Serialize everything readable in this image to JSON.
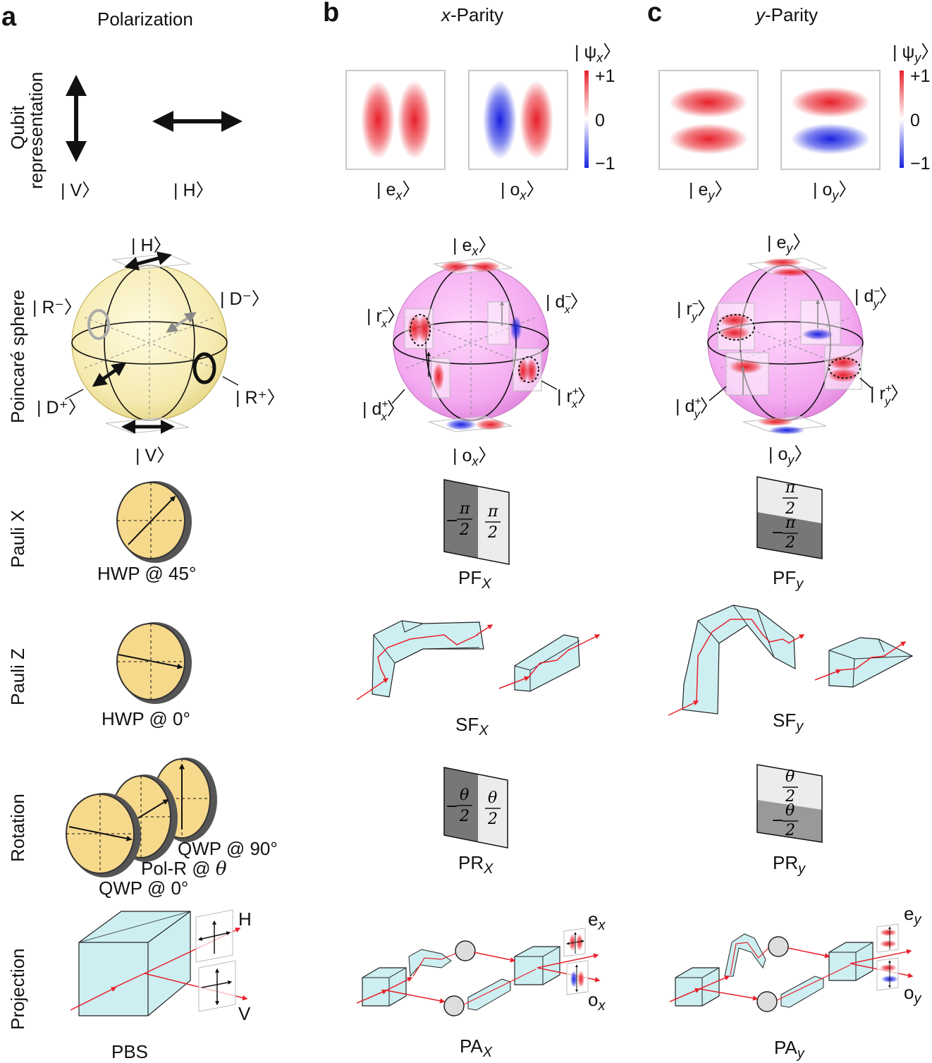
{
  "panels": {
    "a": "a",
    "b": "b",
    "c": "c"
  },
  "headers": {
    "a": "Polarization",
    "b_var": "x",
    "b_rest": "-Parity",
    "c_var": "y",
    "c_rest": "-Parity"
  },
  "rows": {
    "qubit_line1": "Qubit",
    "qubit_line2": "representation",
    "poincare": "Poincaré sphere",
    "pauli_x": "Pauli X",
    "pauli_z": "Pauli Z",
    "rotation": "Rotation",
    "projection": "Projection"
  },
  "qubit": {
    "v": "| V〉",
    "h": "| H〉",
    "ex": "| e",
    "ex_sub": "x",
    "ox": "| o",
    "ox_sub": "x",
    "ey": "| e",
    "ey_sub": "y",
    "oy": "| o",
    "oy_sub": "y",
    "ket_close": "〉"
  },
  "colorbar": {
    "x_label": "| ψ",
    "x_sub": "x",
    "y_label": "| ψ",
    "y_sub": "y",
    "close": "〉",
    "top": "+1",
    "mid": "0",
    "bottom": "−1",
    "color_pos": "#e8202a",
    "color_neg": "#1a22e0"
  },
  "sphere_a": {
    "top": "| H〉",
    "bottom": "| V〉",
    "r_minus": "| R⁻〉",
    "d_minus": "| D⁻〉",
    "d_plus": "| D⁺〉",
    "r_plus": "| R⁺〉",
    "fill": "#f7f0bf"
  },
  "sphere_b": {
    "top": "| e",
    "top_sub": "x",
    "bottom": "| o",
    "bottom_sub": "x",
    "r_minus": "| r",
    "r_minus_sup": "−",
    "r_minus_sub": "x",
    "d_minus": "| d",
    "d_minus_sup": "−",
    "d_minus_sub": "x",
    "d_plus": "| d",
    "d_plus_sup": "+",
    "d_plus_sub": "x",
    "r_plus": "| r",
    "r_plus_sup": "+",
    "r_plus_sub": "x",
    "close": "〉",
    "fill": "#f3a9f0"
  },
  "sphere_c": {
    "top": "| e",
    "top_sub": "y",
    "bottom": "| o",
    "bottom_sub": "y",
    "r_minus": "| r",
    "r_minus_sup": "−",
    "r_minus_sub": "y",
    "d_minus": "| d",
    "d_minus_sup": "−",
    "d_minus_sub": "y",
    "d_plus": "| d",
    "d_plus_sup": "+",
    "d_plus_sub": "y",
    "r_plus": "| r",
    "r_plus_sup": "+",
    "r_plus_sub": "y",
    "close": "〉"
  },
  "pauli_x": {
    "a_caption": "HWP @ 45°",
    "b_caption": "PF",
    "b_sub": "X",
    "c_caption": "PF",
    "c_sub": "y",
    "neg": "−",
    "num": "π",
    "den": "2"
  },
  "pauli_z": {
    "a_caption": "HWP @ 0°",
    "b_caption": "SF",
    "b_sub": "X",
    "c_caption": "SF",
    "c_sub": "y"
  },
  "rotation": {
    "qwp90": "QWP @ 90°",
    "polr": "Pol-R @ ",
    "theta": "θ",
    "qwp0": "QWP @ 0°",
    "b_caption": "PR",
    "b_sub": "X",
    "c_caption": "PR",
    "c_sub": "y",
    "neg": "−",
    "num": "θ",
    "den": "2"
  },
  "projection": {
    "h": "H",
    "v": "V",
    "a_caption": "PBS",
    "ex": "e",
    "ex_sub": "x",
    "ox": "o",
    "ox_sub": "x",
    "ey": "e",
    "ey_sub": "y",
    "oy": "o",
    "oy_sub": "y",
    "b_caption": "PA",
    "b_sub": "X",
    "c_caption": "PA",
    "c_sub": "y"
  },
  "colors": {
    "beam": "#e8202a",
    "glass": "#cdeff2",
    "waveplate": "#f7d98c",
    "waveplate_rim": "#555555",
    "phase_dark": "#777777",
    "phase_light": "#ececec"
  }
}
